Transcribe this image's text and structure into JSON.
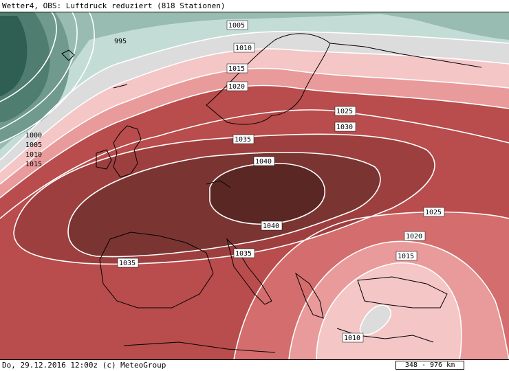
{
  "header": {
    "title": "Wetter4, OBS: Luftdruck reduziert (818 Stationen)"
  },
  "footer": {
    "datetime": "Do, 29.12.2016 12:00z (c) MeteoGroup",
    "scale": "348 - 976 km"
  },
  "isobar_labels": {
    "995": "995",
    "1000": "1000",
    "1005_west": "1005",
    "1005_north": "1005",
    "1010_west": "1010",
    "1010_north": "1010",
    "1010_south": "1010",
    "1015_west": "1015",
    "1015_north": "1015",
    "1015_south": "1015",
    "1020_north": "1020",
    "1020_south": "1020",
    "1025_north": "1025",
    "1025_south": "1025",
    "1030": "1030",
    "1035_north": "1035",
    "1035_west": "1035",
    "1035_south": "1035",
    "1040_north": "1040",
    "1040_south": "1040"
  },
  "colors": {
    "deep_low": "#2f5e52",
    "low_teal_1": "#4f7d70",
    "low_teal_2": "#6f9a8d",
    "low_teal_3": "#98bcb1",
    "low_teal_4": "#c3ddd6",
    "neutral_1010": "#dcdcdc",
    "p1015": "#f4c6c6",
    "p1020": "#e99a9a",
    "p1025": "#d46d6d",
    "p1030": "#bb4d4d",
    "p1035": "#9e3f3f",
    "p1040": "#7a3532",
    "p1045": "#5a2724",
    "isobar": "#ffffff",
    "coast": "#000000"
  }
}
